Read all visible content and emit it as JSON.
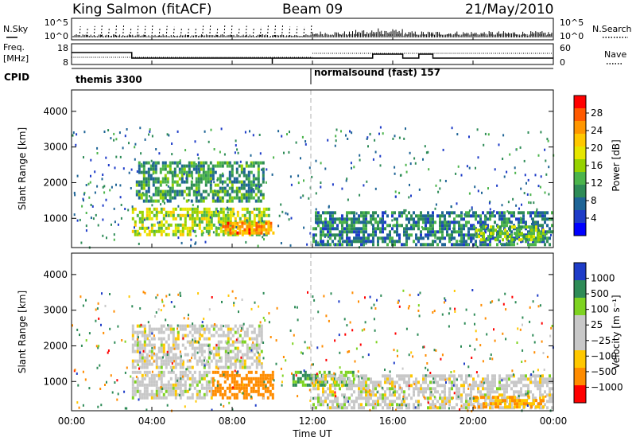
{
  "header": {
    "station": "King Salmon (fitACF)",
    "beam": "Beam 09",
    "date": "21/May/2010"
  },
  "left_labels": {
    "nsky": "N.Sky",
    "freq": "Freq.",
    "freq_unit": "[MHz]",
    "cpid": "CPID"
  },
  "right_labels": {
    "nsearch": "N.Search",
    "nave": "Nave"
  },
  "noise_axis": {
    "left_ticks": [
      "10^5",
      "10^0"
    ],
    "right_ticks": [
      "10^5",
      "10^0"
    ]
  },
  "freq_axis": {
    "left_ticks": [
      "18",
      "8"
    ],
    "right_ticks": [
      "60",
      "0"
    ]
  },
  "cpid_segments": [
    {
      "label": "themis 3300",
      "start_hour": 0
    },
    {
      "label": "normalsound (fast) 157",
      "start_hour": 12
    }
  ],
  "x_axis": {
    "label": "Time UT",
    "ticks": [
      "00:00",
      "04:00",
      "08:00",
      "12:00",
      "16:00",
      "20:00",
      "00:00"
    ]
  },
  "power_colorbar": {
    "label": "Power [dB]",
    "ticks": [
      "28",
      "24",
      "20",
      "16",
      "12",
      "8",
      "4"
    ],
    "colors": [
      "#ff0000",
      "#ff5a00",
      "#ff9600",
      "#ffc800",
      "#e6e600",
      "#96d200",
      "#4bb44b",
      "#2e8b57",
      "#1e6496",
      "#1e3cc8",
      "#0000ff"
    ]
  },
  "velocity_colorbar": {
    "label": "Velocity [m s⁻¹]",
    "ticks": [
      "1000",
      "500",
      "100",
      "25",
      "−25",
      "−100",
      "−500",
      "−1000"
    ],
    "colors": [
      "#1e3cc8",
      "#2e8b57",
      "#7ed321",
      "#c8c8c8",
      "#c8c8c8",
      "#ffc800",
      "#ff8c00",
      "#ff0000"
    ]
  },
  "chart_data": [
    {
      "type": "heatmap",
      "title": "Power",
      "xlabel": "Time UT",
      "ylabel": "Slant Range [km]",
      "xlim": [
        0,
        24
      ],
      "ylim": [
        180,
        4600
      ],
      "yticks": [
        1000,
        2000,
        3000,
        4000
      ],
      "colorbar": {
        "label": "Power [dB]",
        "range": [
          0,
          30
        ]
      },
      "regions": [
        {
          "t": [
            3.2,
            9.5
          ],
          "r": [
            1500,
            2600
          ],
          "value": 10
        },
        {
          "t": [
            3.0,
            9.8
          ],
          "r": [
            500,
            1300
          ],
          "value": 16
        },
        {
          "t": [
            7.5,
            10.0
          ],
          "r": [
            600,
            900
          ],
          "value": 24
        },
        {
          "t": [
            12.0,
            24.0
          ],
          "r": [
            300,
            1200
          ],
          "value": 8
        },
        {
          "t": [
            20.0,
            23.5
          ],
          "r": [
            400,
            800
          ],
          "value": 14
        }
      ]
    },
    {
      "type": "heatmap",
      "title": "Velocity",
      "xlabel": "Time UT",
      "ylabel": "Slant Range [km]",
      "xlim": [
        0,
        24
      ],
      "ylim": [
        180,
        4600
      ],
      "yticks": [
        1000,
        2000,
        3000,
        4000
      ],
      "colorbar": {
        "label": "Velocity [m s⁻¹]",
        "range": [
          -1000,
          1000
        ]
      },
      "regions": [
        {
          "t": [
            3.0,
            9.5
          ],
          "r": [
            1400,
            2600
          ],
          "value": 0
        },
        {
          "t": [
            3.0,
            7.0
          ],
          "r": [
            500,
            1300
          ],
          "value": 0
        },
        {
          "t": [
            7.0,
            10.0
          ],
          "r": [
            500,
            1300
          ],
          "value": -300
        },
        {
          "t": [
            11.0,
            14.0
          ],
          "r": [
            900,
            1300
          ],
          "value": 100
        },
        {
          "t": [
            12.0,
            24.0
          ],
          "r": [
            300,
            1200
          ],
          "value": 0
        },
        {
          "t": [
            20.0,
            23.5
          ],
          "r": [
            300,
            600
          ],
          "value": -100
        }
      ]
    }
  ]
}
